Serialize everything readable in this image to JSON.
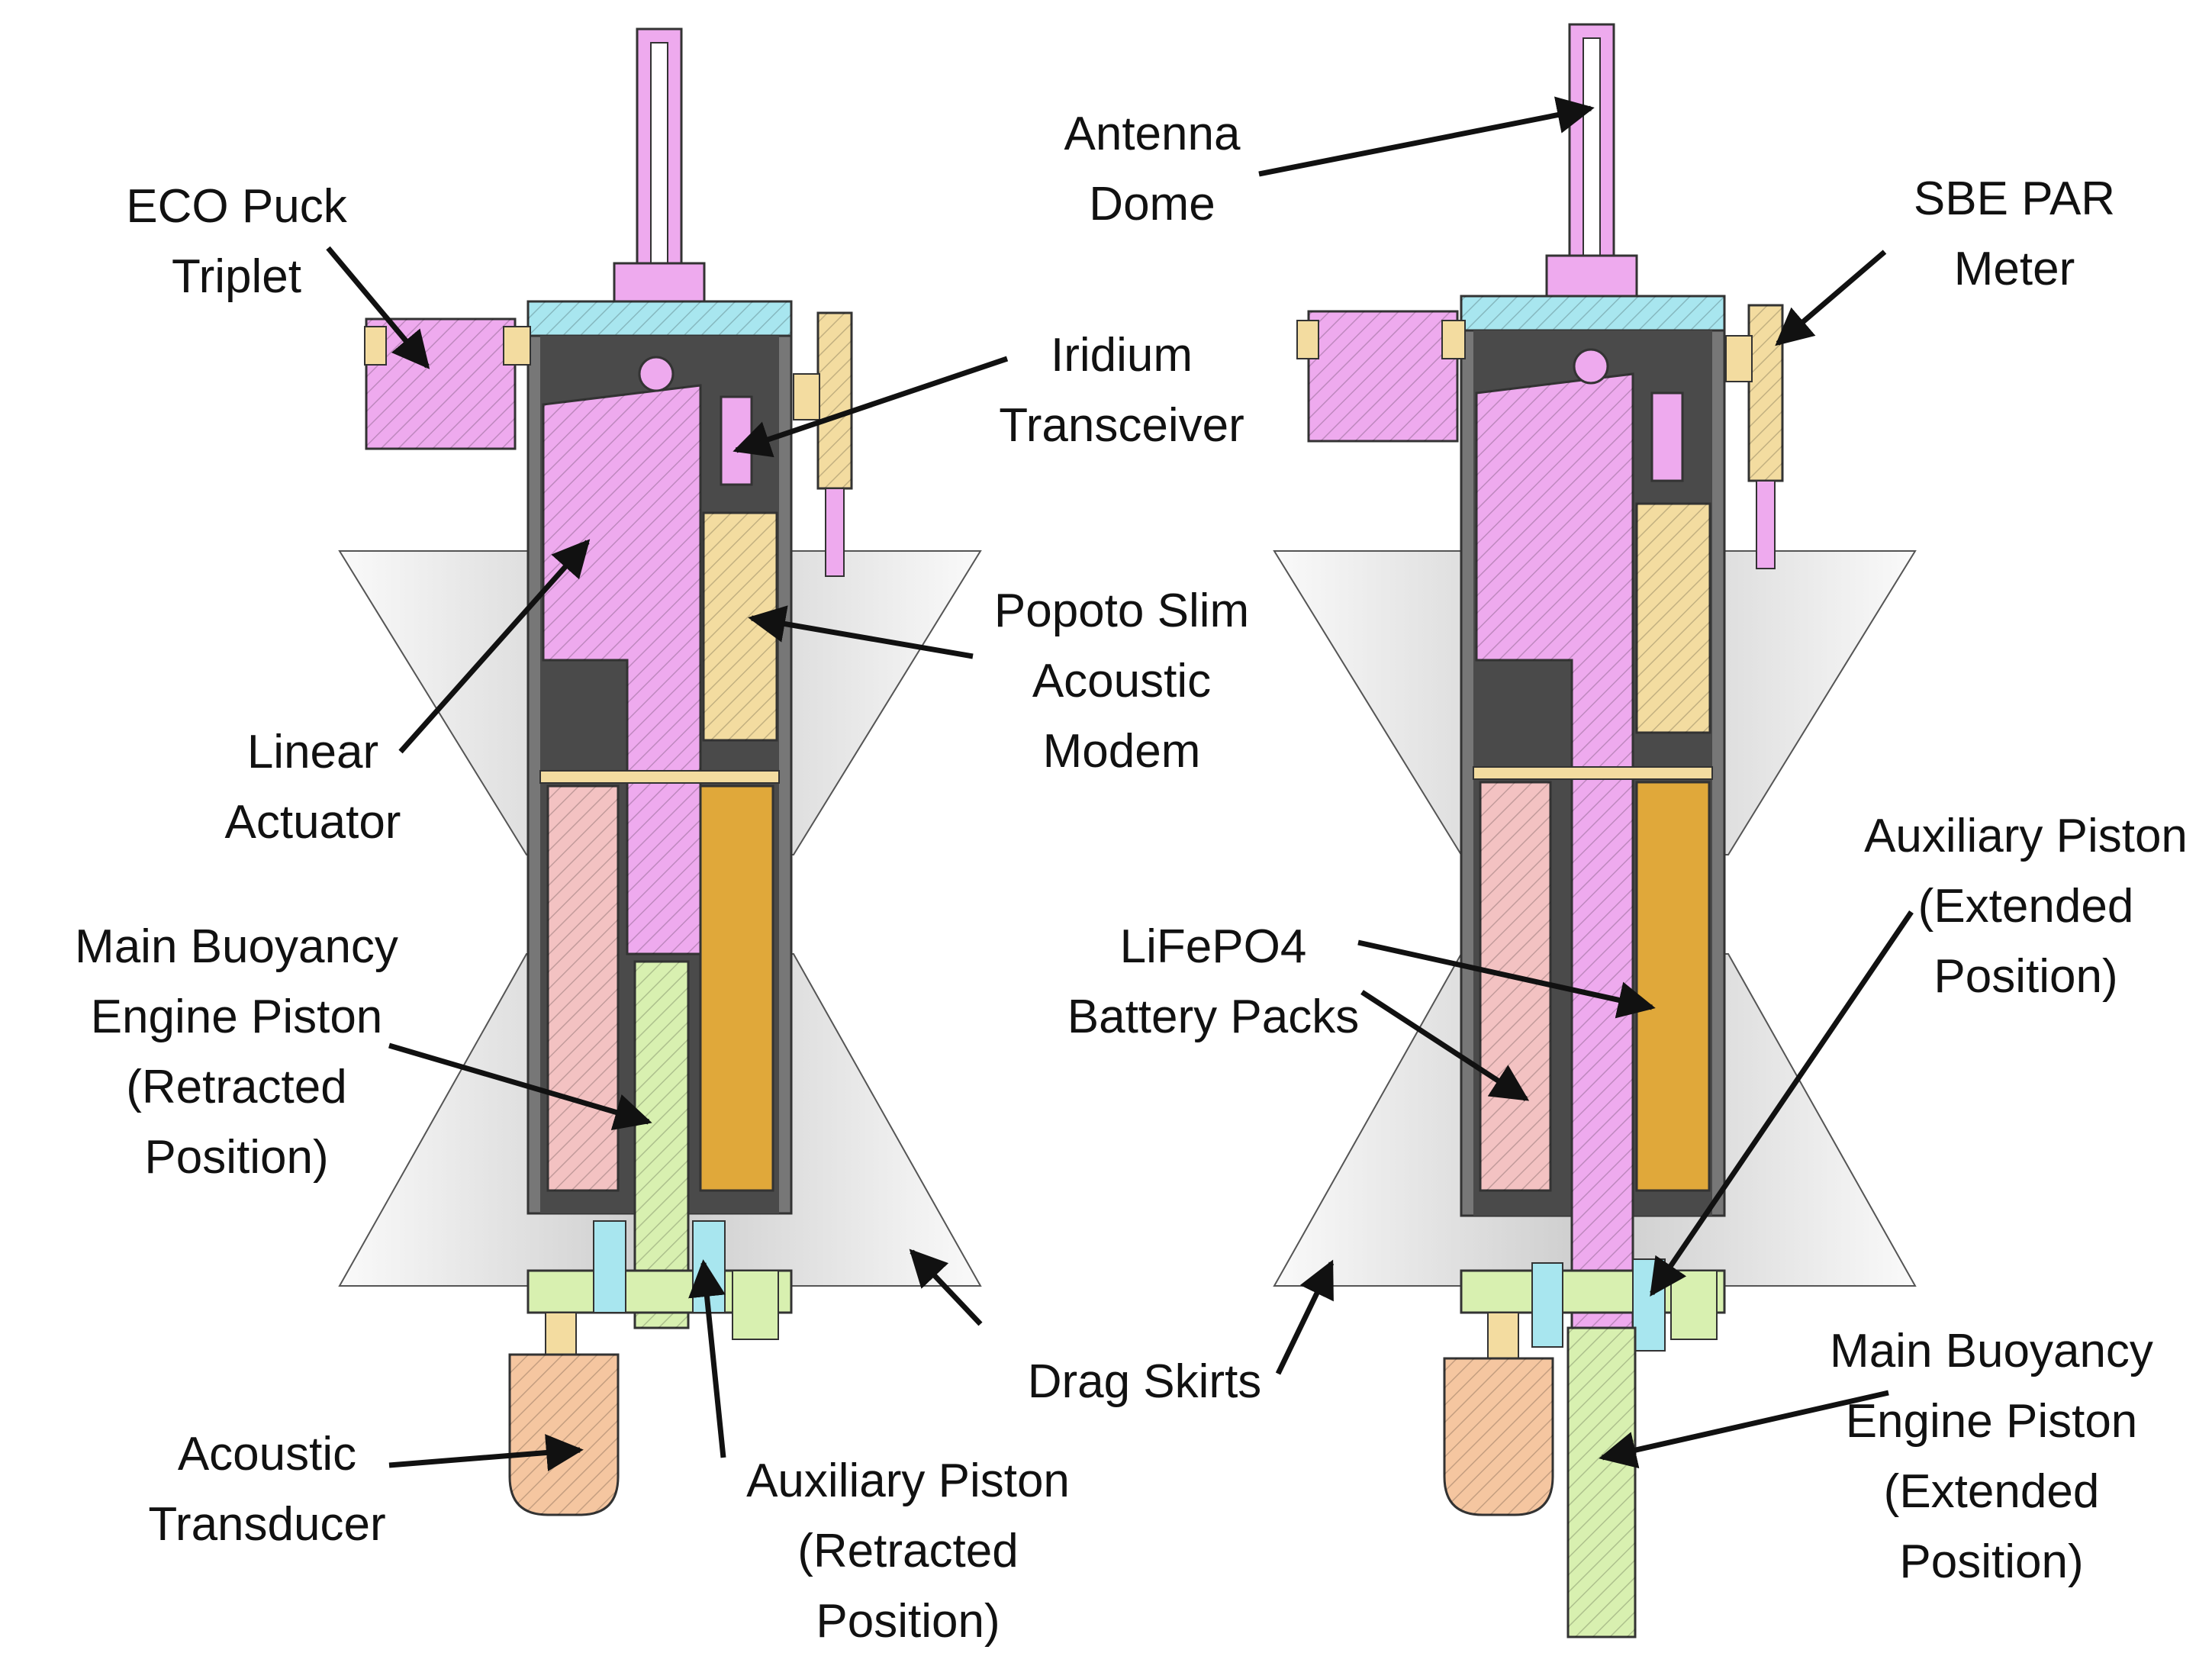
{
  "colors": {
    "housing": "#7b7b7b",
    "interior": "#505050",
    "cap": "#a8e6ef",
    "actuator": "#eeaaee",
    "electronics": "#f3dca0",
    "battery_amber": "#e0a83a",
    "battery_pink": "#f3c2c2",
    "piston": "#d8f0b0",
    "transducer": "#f5c6a0",
    "skirt": "#eeeeee",
    "line": "#111111"
  },
  "labels": {
    "eco_puck": [
      "ECO Puck",
      "Triplet"
    ],
    "iridium": [
      "Iridium",
      "Transceiver"
    ],
    "popoto": [
      "Popoto Slim",
      "Acoustic",
      "Modem"
    ],
    "linear_actuator": [
      "Linear",
      "Actuator"
    ],
    "main_piston_retracted": [
      "Main Buoyancy",
      "Engine Piston",
      "(Retracted",
      "Position)"
    ],
    "acoustic_transducer": [
      "Acoustic",
      "Transducer"
    ],
    "aux_piston_retracted": [
      "Auxiliary Piston",
      "(Retracted",
      "Position)"
    ],
    "drag_skirts": [
      "Drag Skirts"
    ],
    "antenna_dome": [
      "Antenna",
      "Dome"
    ],
    "sbe_par": [
      "SBE PAR",
      "Meter"
    ],
    "aux_piston_extended": [
      "Auxiliary Piston",
      "(Extended",
      "Position)"
    ],
    "lifepo4": [
      "LiFePO4",
      "Battery Packs"
    ],
    "main_piston_extended": [
      "Main Buoyancy",
      "Engine Piston",
      "(Extended",
      "Position)"
    ]
  }
}
